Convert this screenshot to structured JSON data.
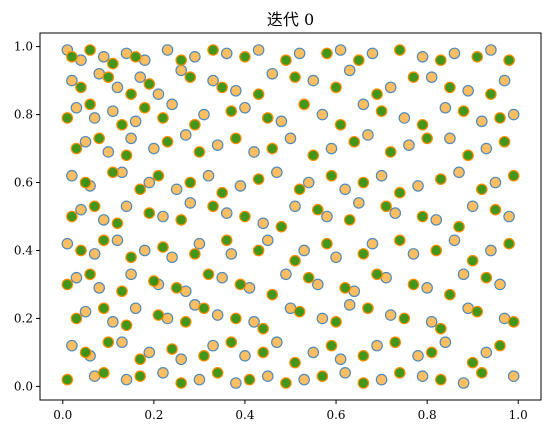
{
  "chart_data": {
    "type": "scatter",
    "title": "迭代 0",
    "xlabel": "",
    "ylabel": "",
    "xlim": [
      -0.05,
      1.05
    ],
    "ylim": [
      -0.04,
      1.04
    ],
    "x_ticks": [
      0.0,
      0.2,
      0.4,
      0.6,
      0.8,
      1.0
    ],
    "x_tick_labels": [
      "0.0",
      "0.2",
      "0.4",
      "0.6",
      "0.8",
      "1.0"
    ],
    "y_ticks": [
      0.0,
      0.2,
      0.4,
      0.6,
      0.8,
      1.0
    ],
    "y_tick_labels": [
      "0.0",
      "0.2",
      "0.4",
      "0.6",
      "0.8",
      "1.0"
    ],
    "grid": false,
    "legend": false,
    "colors": {
      "orange_fill": "#ffb347",
      "orange_edge": "#4f8ab8",
      "green_fill": "#2e8b00",
      "green_edge": "#ff8c00"
    },
    "series": [
      {
        "style": "orange-fill-blue-edge",
        "points": [
          [
            0.01,
            0.99
          ],
          [
            0.04,
            0.96
          ],
          [
            0.09,
            0.97
          ],
          [
            0.14,
            0.98
          ],
          [
            0.18,
            0.96
          ],
          [
            0.23,
            0.99
          ],
          [
            0.29,
            0.97
          ],
          [
            0.36,
            0.98
          ],
          [
            0.43,
            0.99
          ],
          [
            0.52,
            0.98
          ],
          [
            0.61,
            0.99
          ],
          [
            0.68,
            0.98
          ],
          [
            0.79,
            0.97
          ],
          [
            0.86,
            0.98
          ],
          [
            0.94,
            0.99
          ],
          [
            0.02,
            0.9
          ],
          [
            0.08,
            0.92
          ],
          [
            0.12,
            0.88
          ],
          [
            0.17,
            0.91
          ],
          [
            0.21,
            0.86
          ],
          [
            0.26,
            0.93
          ],
          [
            0.33,
            0.9
          ],
          [
            0.38,
            0.87
          ],
          [
            0.46,
            0.92
          ],
          [
            0.55,
            0.9
          ],
          [
            0.63,
            0.93
          ],
          [
            0.72,
            0.88
          ],
          [
            0.81,
            0.91
          ],
          [
            0.89,
            0.87
          ],
          [
            0.97,
            0.9
          ],
          [
            0.03,
            0.82
          ],
          [
            0.07,
            0.79
          ],
          [
            0.11,
            0.81
          ],
          [
            0.16,
            0.78
          ],
          [
            0.24,
            0.83
          ],
          [
            0.31,
            0.8
          ],
          [
            0.4,
            0.82
          ],
          [
            0.48,
            0.78
          ],
          [
            0.57,
            0.8
          ],
          [
            0.66,
            0.83
          ],
          [
            0.75,
            0.79
          ],
          [
            0.84,
            0.82
          ],
          [
            0.92,
            0.78
          ],
          [
            0.99,
            0.8
          ],
          [
            0.05,
            0.72
          ],
          [
            0.1,
            0.69
          ],
          [
            0.15,
            0.73
          ],
          [
            0.2,
            0.7
          ],
          [
            0.27,
            0.74
          ],
          [
            0.34,
            0.71
          ],
          [
            0.42,
            0.69
          ],
          [
            0.5,
            0.73
          ],
          [
            0.59,
            0.7
          ],
          [
            0.67,
            0.74
          ],
          [
            0.76,
            0.71
          ],
          [
            0.85,
            0.73
          ],
          [
            0.93,
            0.7
          ],
          [
            0.02,
            0.62
          ],
          [
            0.06,
            0.59
          ],
          [
            0.13,
            0.63
          ],
          [
            0.19,
            0.6
          ],
          [
            0.25,
            0.58
          ],
          [
            0.32,
            0.62
          ],
          [
            0.39,
            0.59
          ],
          [
            0.47,
            0.63
          ],
          [
            0.54,
            0.6
          ],
          [
            0.62,
            0.58
          ],
          [
            0.7,
            0.62
          ],
          [
            0.78,
            0.59
          ],
          [
            0.87,
            0.63
          ],
          [
            0.95,
            0.6
          ],
          [
            0.04,
            0.52
          ],
          [
            0.09,
            0.49
          ],
          [
            0.14,
            0.53
          ],
          [
            0.22,
            0.5
          ],
          [
            0.28,
            0.54
          ],
          [
            0.36,
            0.51
          ],
          [
            0.44,
            0.48
          ],
          [
            0.51,
            0.53
          ],
          [
            0.58,
            0.5
          ],
          [
            0.65,
            0.54
          ],
          [
            0.73,
            0.51
          ],
          [
            0.82,
            0.49
          ],
          [
            0.9,
            0.53
          ],
          [
            0.98,
            0.5
          ],
          [
            0.01,
            0.42
          ],
          [
            0.07,
            0.39
          ],
          [
            0.12,
            0.43
          ],
          [
            0.18,
            0.4
          ],
          [
            0.24,
            0.38
          ],
          [
            0.3,
            0.42
          ],
          [
            0.37,
            0.39
          ],
          [
            0.45,
            0.43
          ],
          [
            0.53,
            0.4
          ],
          [
            0.6,
            0.38
          ],
          [
            0.68,
            0.42
          ],
          [
            0.77,
            0.39
          ],
          [
            0.86,
            0.43
          ],
          [
            0.94,
            0.4
          ],
          [
            0.03,
            0.32
          ],
          [
            0.08,
            0.29
          ],
          [
            0.15,
            0.33
          ],
          [
            0.21,
            0.3
          ],
          [
            0.27,
            0.28
          ],
          [
            0.35,
            0.32
          ],
          [
            0.41,
            0.29
          ],
          [
            0.49,
            0.33
          ],
          [
            0.56,
            0.3
          ],
          [
            0.64,
            0.28
          ],
          [
            0.71,
            0.32
          ],
          [
            0.8,
            0.29
          ],
          [
            0.88,
            0.33
          ],
          [
            0.96,
            0.3
          ],
          [
            0.05,
            0.22
          ],
          [
            0.11,
            0.19
          ],
          [
            0.16,
            0.23
          ],
          [
            0.23,
            0.2
          ],
          [
            0.29,
            0.24
          ],
          [
            0.34,
            0.21
          ],
          [
            0.42,
            0.19
          ],
          [
            0.5,
            0.23
          ],
          [
            0.57,
            0.2
          ],
          [
            0.63,
            0.24
          ],
          [
            0.72,
            0.21
          ],
          [
            0.81,
            0.19
          ],
          [
            0.89,
            0.23
          ],
          [
            0.97,
            0.2
          ],
          [
            0.02,
            0.12
          ],
          [
            0.06,
            0.09
          ],
          [
            0.13,
            0.13
          ],
          [
            0.19,
            0.1
          ],
          [
            0.26,
            0.08
          ],
          [
            0.33,
            0.12
          ],
          [
            0.4,
            0.09
          ],
          [
            0.47,
            0.13
          ],
          [
            0.55,
            0.1
          ],
          [
            0.61,
            0.08
          ],
          [
            0.69,
            0.12
          ],
          [
            0.78,
            0.09
          ],
          [
            0.84,
            0.13
          ],
          [
            0.93,
            0.1
          ],
          [
            0.07,
            0.03
          ],
          [
            0.14,
            0.02
          ],
          [
            0.22,
            0.04
          ],
          [
            0.3,
            0.02
          ],
          [
            0.38,
            0.01
          ],
          [
            0.45,
            0.03
          ],
          [
            0.53,
            0.02
          ],
          [
            0.62,
            0.04
          ],
          [
            0.7,
            0.02
          ],
          [
            0.79,
            0.03
          ],
          [
            0.88,
            0.01
          ],
          [
            0.99,
            0.03
          ]
        ]
      },
      {
        "style": "green-fill-orange-edge",
        "points": [
          [
            0.02,
            0.97
          ],
          [
            0.06,
            0.99
          ],
          [
            0.11,
            0.95
          ],
          [
            0.16,
            0.97
          ],
          [
            0.26,
            0.96
          ],
          [
            0.33,
            0.99
          ],
          [
            0.4,
            0.97
          ],
          [
            0.49,
            0.96
          ],
          [
            0.58,
            0.98
          ],
          [
            0.65,
            0.96
          ],
          [
            0.74,
            0.99
          ],
          [
            0.83,
            0.96
          ],
          [
            0.91,
            0.97
          ],
          [
            0.98,
            0.96
          ],
          [
            0.04,
            0.88
          ],
          [
            0.1,
            0.91
          ],
          [
            0.15,
            0.86
          ],
          [
            0.19,
            0.89
          ],
          [
            0.28,
            0.91
          ],
          [
            0.35,
            0.88
          ],
          [
            0.43,
            0.86
          ],
          [
            0.51,
            0.91
          ],
          [
            0.6,
            0.88
          ],
          [
            0.69,
            0.86
          ],
          [
            0.77,
            0.91
          ],
          [
            0.85,
            0.88
          ],
          [
            0.94,
            0.86
          ],
          [
            0.01,
            0.79
          ],
          [
            0.06,
            0.83
          ],
          [
            0.13,
            0.77
          ],
          [
            0.18,
            0.82
          ],
          [
            0.22,
            0.79
          ],
          [
            0.29,
            0.77
          ],
          [
            0.37,
            0.81
          ],
          [
            0.45,
            0.79
          ],
          [
            0.53,
            0.83
          ],
          [
            0.61,
            0.77
          ],
          [
            0.7,
            0.81
          ],
          [
            0.79,
            0.77
          ],
          [
            0.88,
            0.81
          ],
          [
            0.96,
            0.79
          ],
          [
            0.03,
            0.7
          ],
          [
            0.08,
            0.73
          ],
          [
            0.14,
            0.68
          ],
          [
            0.23,
            0.72
          ],
          [
            0.3,
            0.69
          ],
          [
            0.38,
            0.73
          ],
          [
            0.46,
            0.7
          ],
          [
            0.55,
            0.68
          ],
          [
            0.64,
            0.72
          ],
          [
            0.72,
            0.69
          ],
          [
            0.8,
            0.73
          ],
          [
            0.89,
            0.68
          ],
          [
            0.97,
            0.72
          ],
          [
            0.05,
            0.6
          ],
          [
            0.11,
            0.63
          ],
          [
            0.17,
            0.58
          ],
          [
            0.21,
            0.62
          ],
          [
            0.28,
            0.6
          ],
          [
            0.35,
            0.57
          ],
          [
            0.43,
            0.61
          ],
          [
            0.52,
            0.58
          ],
          [
            0.59,
            0.62
          ],
          [
            0.66,
            0.6
          ],
          [
            0.74,
            0.57
          ],
          [
            0.83,
            0.61
          ],
          [
            0.92,
            0.58
          ],
          [
            0.99,
            0.62
          ],
          [
            0.02,
            0.5
          ],
          [
            0.07,
            0.53
          ],
          [
            0.12,
            0.48
          ],
          [
            0.19,
            0.51
          ],
          [
            0.26,
            0.49
          ],
          [
            0.33,
            0.53
          ],
          [
            0.4,
            0.5
          ],
          [
            0.48,
            0.47
          ],
          [
            0.56,
            0.52
          ],
          [
            0.63,
            0.49
          ],
          [
            0.71,
            0.53
          ],
          [
            0.79,
            0.5
          ],
          [
            0.87,
            0.47
          ],
          [
            0.95,
            0.52
          ],
          [
            0.04,
            0.4
          ],
          [
            0.09,
            0.43
          ],
          [
            0.15,
            0.38
          ],
          [
            0.22,
            0.41
          ],
          [
            0.29,
            0.39
          ],
          [
            0.36,
            0.43
          ],
          [
            0.43,
            0.4
          ],
          [
            0.51,
            0.37
          ],
          [
            0.58,
            0.42
          ],
          [
            0.66,
            0.39
          ],
          [
            0.74,
            0.43
          ],
          [
            0.82,
            0.4
          ],
          [
            0.9,
            0.37
          ],
          [
            0.98,
            0.42
          ],
          [
            0.01,
            0.3
          ],
          [
            0.06,
            0.33
          ],
          [
            0.13,
            0.28
          ],
          [
            0.2,
            0.31
          ],
          [
            0.25,
            0.29
          ],
          [
            0.32,
            0.33
          ],
          [
            0.39,
            0.3
          ],
          [
            0.46,
            0.27
          ],
          [
            0.54,
            0.32
          ],
          [
            0.62,
            0.29
          ],
          [
            0.69,
            0.33
          ],
          [
            0.77,
            0.3
          ],
          [
            0.85,
            0.27
          ],
          [
            0.93,
            0.32
          ],
          [
            0.03,
            0.2
          ],
          [
            0.09,
            0.23
          ],
          [
            0.14,
            0.18
          ],
          [
            0.21,
            0.21
          ],
          [
            0.27,
            0.19
          ],
          [
            0.31,
            0.23
          ],
          [
            0.38,
            0.2
          ],
          [
            0.44,
            0.17
          ],
          [
            0.52,
            0.22
          ],
          [
            0.6,
            0.19
          ],
          [
            0.67,
            0.23
          ],
          [
            0.75,
            0.2
          ],
          [
            0.83,
            0.17
          ],
          [
            0.91,
            0.22
          ],
          [
            0.99,
            0.19
          ],
          [
            0.05,
            0.1
          ],
          [
            0.1,
            0.13
          ],
          [
            0.17,
            0.08
          ],
          [
            0.24,
            0.11
          ],
          [
            0.31,
            0.09
          ],
          [
            0.37,
            0.13
          ],
          [
            0.44,
            0.1
          ],
          [
            0.51,
            0.07
          ],
          [
            0.59,
            0.12
          ],
          [
            0.66,
            0.09
          ],
          [
            0.73,
            0.13
          ],
          [
            0.81,
            0.1
          ],
          [
            0.9,
            0.07
          ],
          [
            0.96,
            0.12
          ],
          [
            0.01,
            0.02
          ],
          [
            0.09,
            0.04
          ],
          [
            0.17,
            0.03
          ],
          [
            0.26,
            0.01
          ],
          [
            0.34,
            0.04
          ],
          [
            0.41,
            0.02
          ],
          [
            0.49,
            0.01
          ],
          [
            0.57,
            0.03
          ],
          [
            0.66,
            0.01
          ],
          [
            0.74,
            0.04
          ],
          [
            0.83,
            0.02
          ],
          [
            0.92,
            0.04
          ]
        ]
      }
    ]
  }
}
